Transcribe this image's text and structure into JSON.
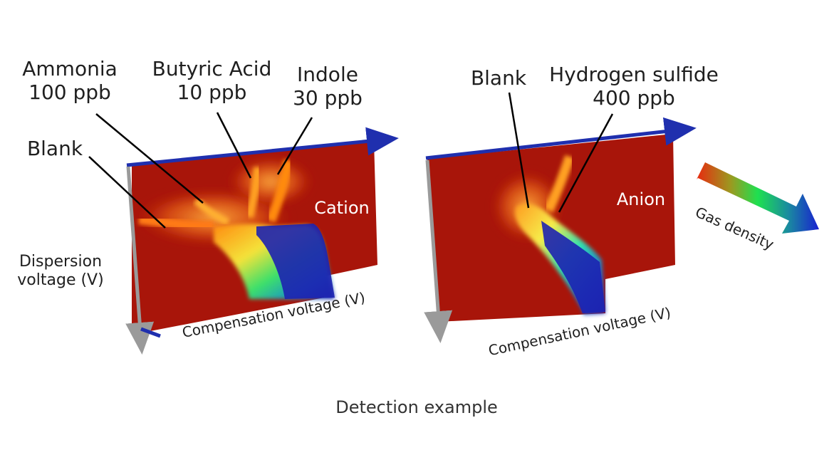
{
  "caption": "Detection example",
  "colors": {
    "background_red": "#a8150a",
    "high_density_blue": "#1d22b0",
    "axis_blue": "#1f2fae",
    "axis_gray": "#9a9a9a"
  },
  "legend": {
    "label": "Gas density",
    "gradient": [
      "#e82a10",
      "#9b9a20",
      "#1ee050",
      "#1a8aa0",
      "#1820d0"
    ]
  },
  "panels": [
    {
      "id": "cation",
      "title": "Cation",
      "x_axis_label": "Compensation voltage (V)",
      "y_axis_label": [
        "Dispersion",
        "voltage (V)"
      ],
      "annotations": [
        {
          "id": "ammonia",
          "lines": [
            "Ammonia",
            "100 ppb"
          ]
        },
        {
          "id": "butyric",
          "lines": [
            "Butyric Acid",
            "10 ppb"
          ]
        },
        {
          "id": "indole",
          "lines": [
            "Indole",
            "30 ppb"
          ]
        },
        {
          "id": "blank",
          "lines": [
            "Blank"
          ]
        }
      ]
    },
    {
      "id": "anion",
      "title": "Anion",
      "x_axis_label": "Compensation voltage (V)",
      "annotations": [
        {
          "id": "blank",
          "lines": [
            "Blank"
          ]
        },
        {
          "id": "h2s",
          "lines": [
            "Hydrogen sulfide",
            "400 ppb"
          ]
        }
      ]
    }
  ]
}
